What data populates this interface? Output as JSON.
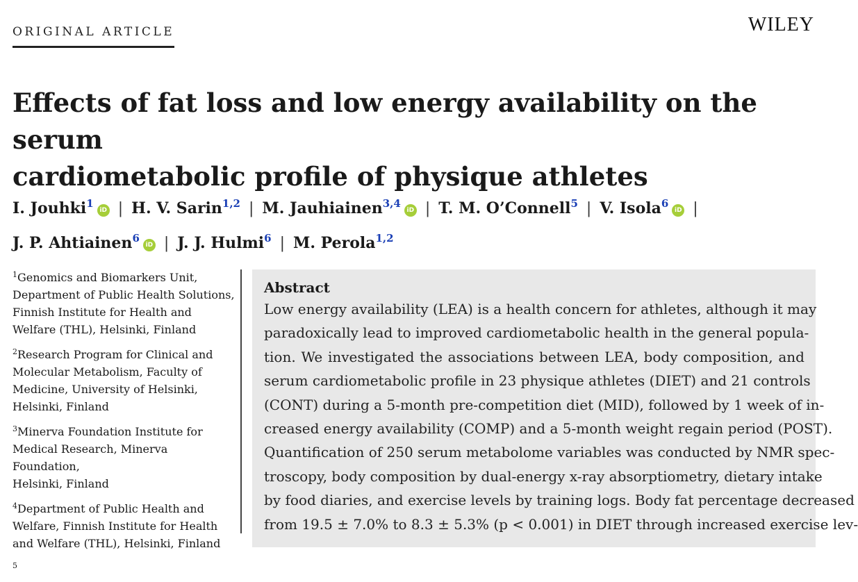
{
  "header": {
    "kicker": "ORIGINAL ARTICLE",
    "publisher": "WILEY"
  },
  "title_lines": [
    "Effects of fat loss and low energy availability on the serum",
    "cardiometabolic profile of physique athletes"
  ],
  "authors": [
    {
      "name": "I. Jouhki",
      "sup": "1",
      "orcid": true
    },
    {
      "name": "H. V. Sarin",
      "sup": "1,2",
      "orcid": false
    },
    {
      "name": "M. Jauhiainen",
      "sup": "3,4",
      "orcid": true
    },
    {
      "name": "T. M. O’Connell",
      "sup": "5",
      "orcid": false
    },
    {
      "name": "V. Isola",
      "sup": "6",
      "orcid": true
    },
    {
      "name": "J. P. Ahtiainen",
      "sup": "6",
      "orcid": true
    },
    {
      "name": "J. J. Hulmi",
      "sup": "6",
      "orcid": false
    },
    {
      "name": "M. Perola",
      "sup": "1,2",
      "orcid": false
    }
  ],
  "orcid_glyph": "iD",
  "separator": "|",
  "affiliations": [
    {
      "num": "1",
      "lines": [
        "Genomics and Biomarkers Unit,",
        "Department of Public Health Solutions,",
        "Finnish Institute for Health and",
        "Welfare (THL), Helsinki, Finland"
      ]
    },
    {
      "num": "2",
      "lines": [
        "Research Program for Clinical and",
        "Molecular Metabolism, Faculty of",
        "Medicine, University of Helsinki,",
        "Helsinki, Finland"
      ]
    },
    {
      "num": "3",
      "lines": [
        "Minerva Foundation Institute for",
        "Medical Research, Minerva Foundation,",
        "Helsinki, Finland"
      ]
    },
    {
      "num": "4",
      "lines": [
        "Department of Public Health and",
        "Welfare, Finnish Institute for Health",
        "and Welfare (THL), Helsinki, Finland"
      ]
    },
    {
      "num": "5",
      "lines": [
        ""
      ]
    }
  ],
  "abstract": {
    "heading": "Abstract",
    "lines": [
      "Low energy availability (LEA) is a health concern for athletes, although it may",
      "paradoxically lead to improved cardiometabolic health in the general popula-",
      "tion. We investigated the associations between LEA, body composition, and",
      "serum cardiometabolic profile in 23 physique athletes (DIET) and 21 controls",
      "(CONT) during a 5-month pre-competition diet (MID), followed by 1 week of in-",
      "creased energy availability (COMP) and a 5-month weight regain period (POST).",
      "Quantification of 250 serum metabolome variables was conducted by NMR spec-",
      "troscopy, body composition by dual-energy x-ray absorptiometry, dietary intake",
      "by food diaries, and exercise levels by training logs. Body fat percentage decreased",
      "from 19.5 ± 7.0% to 8.3 ± 5.3% (p < 0.001) in DIET through increased exercise lev-"
    ]
  }
}
